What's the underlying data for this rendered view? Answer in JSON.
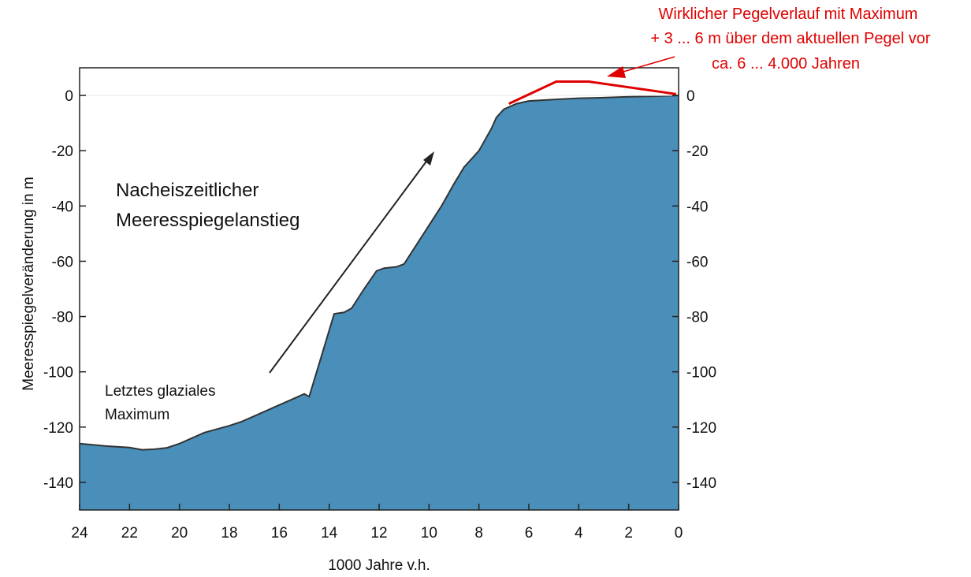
{
  "chart_data": {
    "type": "area",
    "xlabel": "1000 Jahre v.h.",
    "ylabel": "Meeresspiegelveränderung in m",
    "xlim": [
      24,
      0
    ],
    "ylim": [
      -150,
      10
    ],
    "x_ticks": [
      24,
      22,
      20,
      18,
      16,
      14,
      12,
      10,
      8,
      6,
      4,
      2,
      0
    ],
    "y_ticks": [
      0,
      -20,
      -40,
      -60,
      -80,
      -100,
      -120,
      -140
    ],
    "grid": false,
    "x_tick_labels": [
      "24",
      "22",
      "20",
      "18",
      "16",
      "14",
      "12",
      "10",
      "8",
      "6",
      "4",
      "2",
      "0"
    ],
    "y_tick_labels": [
      "0",
      "-20",
      "-40",
      "-60",
      "-80",
      "-100",
      "-120",
      "-140"
    ],
    "series": [
      {
        "x": [
          24,
          23,
          22,
          21.5,
          21,
          20.5,
          20,
          19,
          18,
          17.5,
          17,
          16.5,
          16,
          15.5,
          15,
          14.8,
          14.3,
          13.8,
          13.4,
          13.1,
          12.6,
          12.1,
          11.8,
          11.3,
          11,
          10,
          9.5,
          9,
          8.6,
          8,
          7.5,
          7.3,
          7,
          6.5,
          6,
          5,
          4,
          3,
          2,
          1,
          0.3,
          0
        ],
        "y": [
          -126,
          -126.8,
          -127.4,
          -128.2,
          -128,
          -127.5,
          -126,
          -122,
          -119.5,
          -118,
          -116,
          -114,
          -112,
          -110,
          -108,
          -109,
          -94,
          -79,
          -78.5,
          -77,
          -70,
          -63.5,
          -62.5,
          -62,
          -61,
          -47,
          -40,
          -32,
          -26,
          -20,
          -12,
          -8,
          -5,
          -3,
          -2,
          -1.5,
          -1,
          -0.8,
          -0.5,
          -0.3,
          -0.1,
          0
        ],
        "color": "#4a8fba"
      }
    ],
    "annotations": {
      "main_line1": "Nacheiszeitlicher",
      "main_line2": "Meeresspiegelanstieg",
      "lgm_line1": "Letztes glaziales",
      "lgm_line2": "Maximum",
      "red_line1": "Wirklicher Pegelverlauf mit Maximum",
      "red_line2": "+ 3 ... 6 m über dem aktuellen Pegel vor",
      "red_line3": "ca. 6 ... 4.000 Jahren"
    },
    "actual_level_overlay": {
      "color": "#e00000",
      "x": [
        6.8,
        4.9,
        3.6,
        0.1
      ],
      "y": [
        -3,
        5,
        5,
        0.5
      ]
    }
  }
}
